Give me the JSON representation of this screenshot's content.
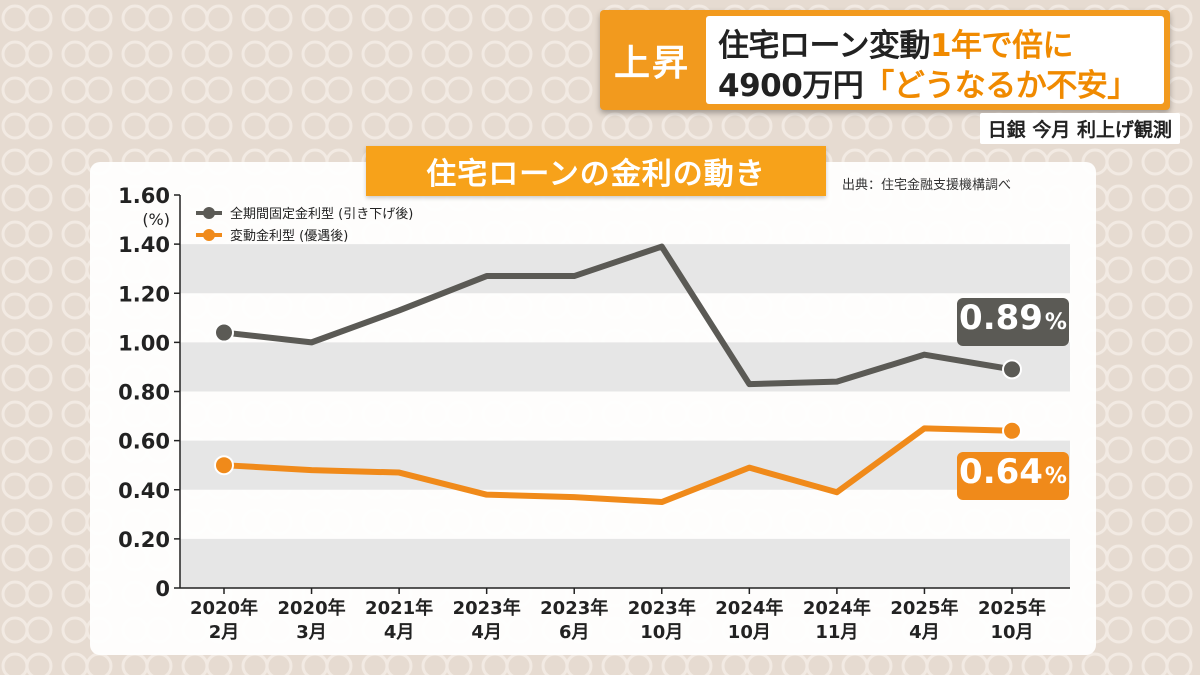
{
  "headline": {
    "tag": "上昇",
    "line1_prefix": "住宅ローン変動",
    "line1_accent": "1年で倍に",
    "line2_prefix": "4900万円",
    "line2_accent": "「どうなるか不安」"
  },
  "sub_caption": "日銀 今月 利上げ観測",
  "chart_title": "住宅ローンの金利の動き",
  "source": "出典：住宅金融支援機構調べ",
  "colors": {
    "fixed": "#5b5a55",
    "variable": "#f08a1a",
    "accent": "#f29a1e"
  },
  "chart_data": {
    "type": "line",
    "title": "住宅ローンの金利の動き",
    "ylabel": "(%)",
    "ylim": [
      0,
      1.6
    ],
    "yticks": [
      "0",
      "0.20",
      "0.40",
      "0.60",
      "0.80",
      "1.00",
      "1.20",
      "1.40",
      "1.60"
    ],
    "categories": [
      [
        "2020年",
        "2月"
      ],
      [
        "2020年",
        "3月"
      ],
      [
        "2021年",
        "4月"
      ],
      [
        "2023年",
        "4月"
      ],
      [
        "2023年",
        "6月"
      ],
      [
        "2023年",
        "10月"
      ],
      [
        "2024年",
        "10月"
      ],
      [
        "2024年",
        "11月"
      ],
      [
        "2025年",
        "4月"
      ],
      [
        "2025年",
        "10月"
      ]
    ],
    "series": [
      {
        "name": "全期間固定金利型 (引き下げ後)",
        "values": [
          1.04,
          1.0,
          1.13,
          1.27,
          1.27,
          1.39,
          0.83,
          0.84,
          0.95,
          0.89
        ],
        "callout": {
          "value": "0.89",
          "unit": "%"
        }
      },
      {
        "name": "変動金利型 (優遇後)",
        "values": [
          0.5,
          0.48,
          0.47,
          0.38,
          0.37,
          0.35,
          0.49,
          0.39,
          0.65,
          0.64
        ],
        "callout": {
          "value": "0.64",
          "unit": "%"
        }
      }
    ],
    "legend_position": "top-left",
    "grid": "alternating-bands"
  }
}
